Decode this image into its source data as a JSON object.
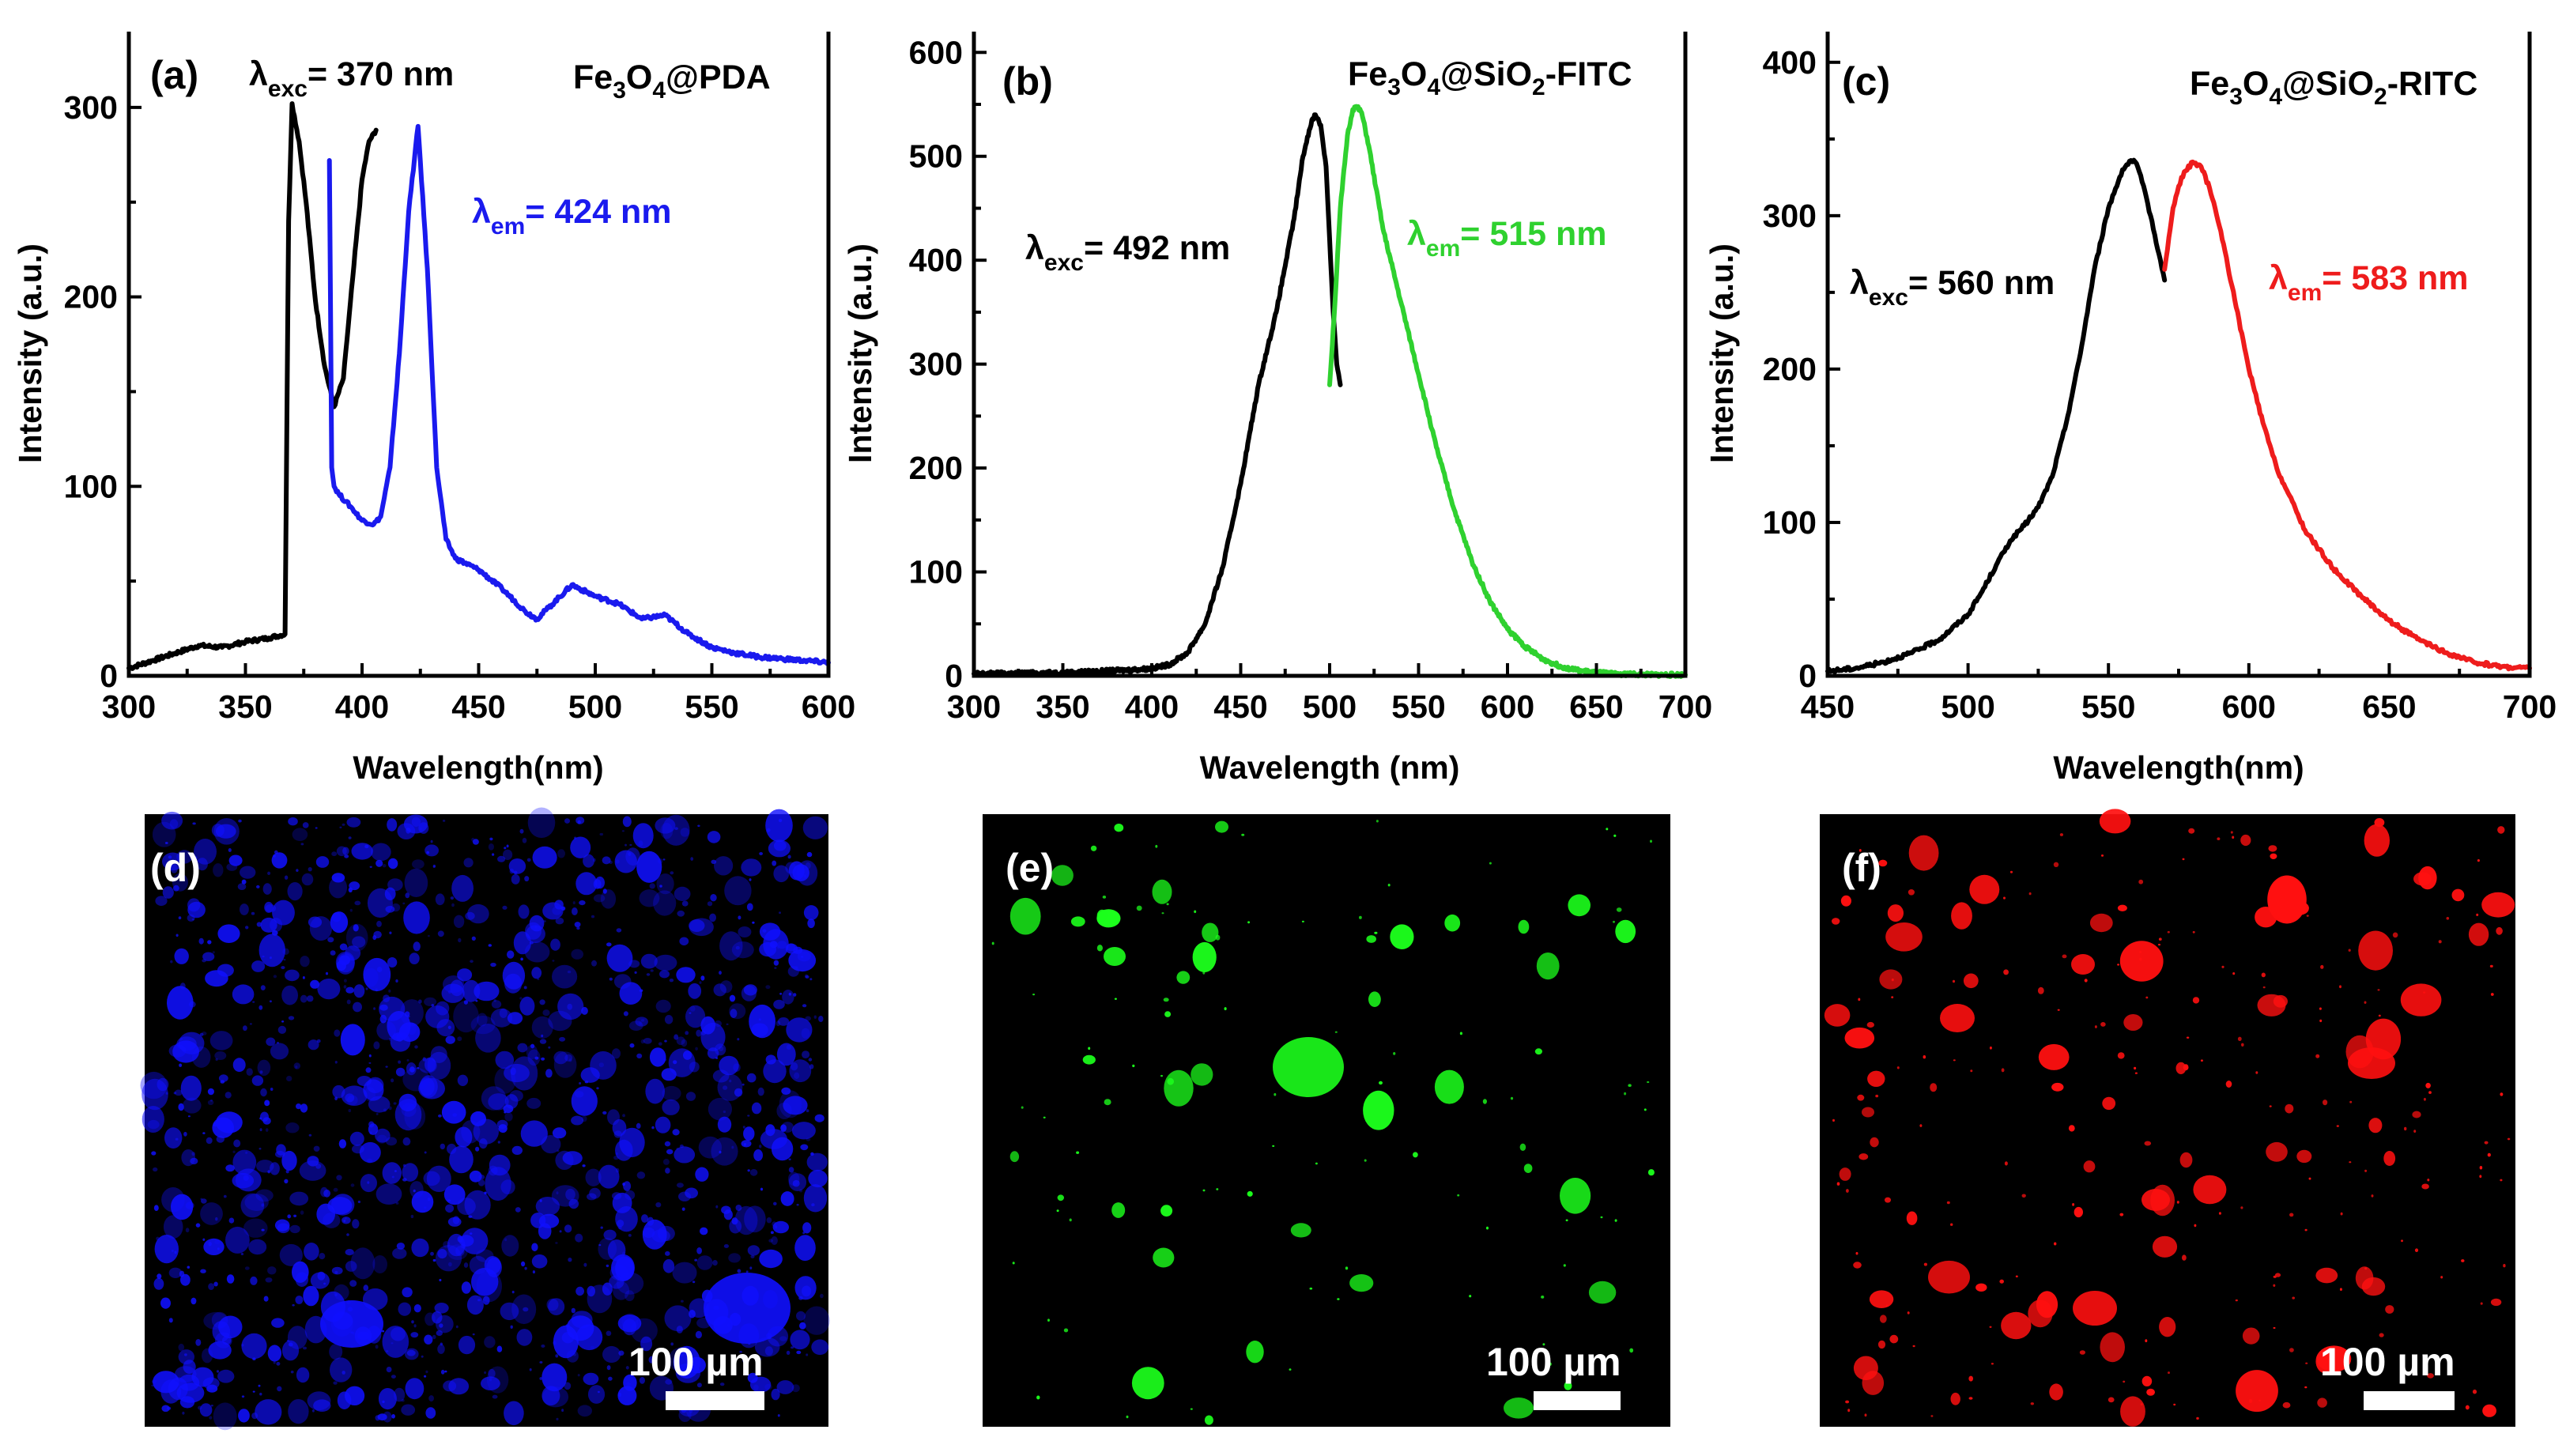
{
  "chart_data": [
    {
      "type": "line",
      "panel_label": "(a)",
      "sample": {
        "main": "Fe",
        "sub1": "3",
        "mid1": "O",
        "sub2": "4",
        "tail": "@PDA"
      },
      "xlabel": "Wavelength(nm)",
      "ylabel": "Intensity (a.u.)",
      "xlim": [
        300,
        600
      ],
      "ylim": [
        0,
        340
      ],
      "xticks": [
        300,
        350,
        400,
        450,
        500,
        550,
        600
      ],
      "yticks": [
        0,
        100,
        200,
        300
      ],
      "annotations": [
        {
          "lambda": "λ",
          "sub": "exc",
          "text": "= 370 nm",
          "color": "#000000"
        },
        {
          "lambda": "λ",
          "sub": "em",
          "text": "= 424 nm",
          "color": "#1a1aee"
        }
      ],
      "series": [
        {
          "name": "excitation",
          "color": "#000000",
          "x": [
            300,
            310,
            320,
            330,
            340,
            350,
            360,
            367,
            368.5,
            370,
            373,
            376,
            380,
            384,
            388,
            392,
            396,
            400,
            403,
            406
          ],
          "y": [
            4,
            8,
            12,
            16,
            15,
            18,
            20,
            22,
            240,
            302,
            282,
            250,
            198,
            163,
            142,
            157,
            210,
            262,
            282,
            288
          ]
        },
        {
          "name": "emission",
          "color": "#1a1aee",
          "x": [
            386,
            387,
            388,
            390,
            393,
            396,
            400,
            405,
            408,
            412,
            416,
            420,
            424,
            428,
            432,
            436,
            440,
            450,
            460,
            470,
            475,
            480,
            490,
            500,
            510,
            520,
            530,
            540,
            550,
            560,
            570,
            580,
            590,
            600
          ],
          "y": [
            272,
            110,
            100,
            96,
            92,
            88,
            82,
            80,
            84,
            110,
            170,
            245,
            290,
            215,
            110,
            72,
            62,
            56,
            46,
            34,
            30,
            36,
            48,
            42,
            38,
            30,
            32,
            22,
            15,
            12,
            10,
            9,
            8,
            7
          ]
        }
      ]
    },
    {
      "type": "line",
      "panel_label": "(b)",
      "sample": {
        "main": "Fe",
        "sub1": "3",
        "mid1": "O",
        "sub2": "4",
        "mid2": "@SiO",
        "sub3": "2",
        "tail": "-FITC"
      },
      "xlabel": "Wavelength (nm)",
      "ylabel": "Intensity (a.u.)",
      "xlim": [
        300,
        700
      ],
      "ylim": [
        0,
        620
      ],
      "xticks": [
        300,
        350,
        400,
        450,
        500,
        550,
        600,
        650,
        700
      ],
      "yticks": [
        0,
        100,
        200,
        300,
        400,
        500,
        600
      ],
      "annotations": [
        {
          "lambda": "λ",
          "sub": "exc",
          "text": "= 492 nm",
          "color": "#000000"
        },
        {
          "lambda": "λ",
          "sub": "em",
          "text": "= 515 nm",
          "color": "#2fd12f"
        }
      ],
      "series": [
        {
          "name": "excitation",
          "color": "#000000",
          "x": [
            300,
            350,
            380,
            400,
            410,
            420,
            430,
            440,
            450,
            460,
            470,
            480,
            485,
            490,
            492,
            495,
            498,
            500,
            502,
            504,
            506
          ],
          "y": [
            2,
            3,
            5,
            7,
            11,
            22,
            50,
            105,
            185,
            280,
            350,
            440,
            500,
            535,
            540,
            530,
            490,
            420,
            350,
            300,
            280
          ]
        },
        {
          "name": "emission",
          "color": "#2fd12f",
          "x": [
            500,
            503,
            506,
            510,
            513,
            515,
            518,
            522,
            526,
            530,
            540,
            550,
            560,
            570,
            580,
            590,
            600,
            610,
            620,
            630,
            640,
            650,
            660,
            680,
            700
          ],
          "y": [
            280,
            360,
            450,
            520,
            545,
            548,
            542,
            510,
            470,
            430,
            360,
            290,
            220,
            160,
            110,
            72,
            45,
            28,
            16,
            9,
            5,
            3,
            2,
            1,
            1
          ]
        }
      ]
    },
    {
      "type": "line",
      "panel_label": "(c)",
      "sample": {
        "main": "Fe",
        "sub1": "3",
        "mid1": "O",
        "sub2": "4",
        "mid2": "@SiO",
        "sub3": "2",
        "tail": "-RITC"
      },
      "xlabel": "Wavelength(nm)",
      "ylabel": "Intensity (a.u.)",
      "xlim": [
        450,
        700
      ],
      "ylim": [
        0,
        420
      ],
      "xticks": [
        450,
        500,
        550,
        600,
        650,
        700
      ],
      "yticks": [
        0,
        100,
        200,
        300,
        400
      ],
      "annotations": [
        {
          "lambda": "λ",
          "sub": "exc",
          "text": "= 560 nm",
          "color": "#000000"
        },
        {
          "lambda": "λ",
          "sub": "em",
          "text": "= 583 nm",
          "color": "#ee1c1c"
        }
      ],
      "series": [
        {
          "name": "excitation",
          "color": "#000000",
          "x": [
            450,
            460,
            470,
            480,
            490,
            500,
            505,
            510,
            515,
            520,
            525,
            530,
            535,
            540,
            545,
            550,
            555,
            558,
            560,
            562,
            565,
            568,
            570
          ],
          "y": [
            3,
            5,
            9,
            15,
            24,
            40,
            55,
            72,
            88,
            98,
            110,
            130,
            165,
            210,
            265,
            305,
            330,
            336,
            334,
            322,
            300,
            275,
            258
          ]
        },
        {
          "name": "emission",
          "color": "#ee1c1c",
          "x": [
            570,
            573,
            576,
            580,
            583,
            586,
            590,
            595,
            600,
            605,
            610,
            620,
            630,
            640,
            650,
            660,
            670,
            680,
            690,
            700
          ],
          "y": [
            265,
            305,
            325,
            335,
            332,
            318,
            290,
            245,
            200,
            165,
            135,
            95,
            70,
            52,
            36,
            24,
            15,
            9,
            6,
            5
          ]
        }
      ]
    }
  ],
  "micrographs": [
    {
      "panel_label": "(d)",
      "scale_bar": "100 µm",
      "color": "#1010ff"
    },
    {
      "panel_label": "(e)",
      "scale_bar": "100 µm",
      "color": "#1cff1c"
    },
    {
      "panel_label": "(f)",
      "scale_bar": "100 µm",
      "color": "#ff1010"
    }
  ]
}
